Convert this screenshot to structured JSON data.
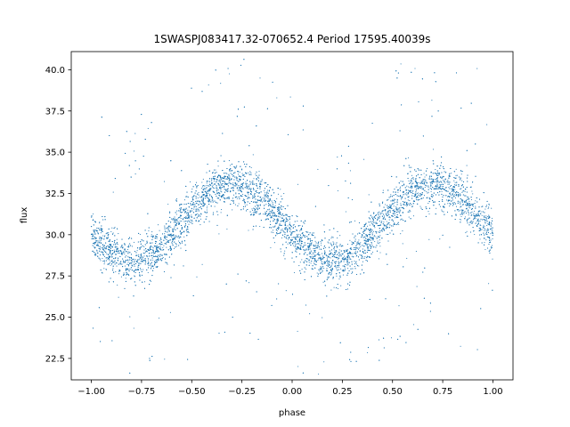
{
  "chart_data": {
    "type": "scatter",
    "title": "1SWASPJ083417.32-070652.4 Period 17595.40039s",
    "xlabel": "phase",
    "ylabel": "flux",
    "xlim": [
      -1.1,
      1.1
    ],
    "ylim": [
      21.2,
      41.1
    ],
    "xticks": [
      -1.0,
      -0.75,
      -0.5,
      -0.25,
      0.0,
      0.25,
      0.5,
      0.75,
      1.0
    ],
    "xtick_labels": [
      "−1.00",
      "−0.75",
      "−0.50",
      "−0.25",
      "0.00",
      "0.25",
      "0.50",
      "0.75",
      "1.00"
    ],
    "yticks": [
      22.5,
      25.0,
      27.5,
      30.0,
      32.5,
      35.0,
      37.5,
      40.0
    ],
    "ytick_labels": [
      "22.5",
      "25.0",
      "27.5",
      "30.0",
      "32.5",
      "35.0",
      "37.5",
      "40.0"
    ],
    "grid": false,
    "marker_color": "#1f77b4",
    "series": [
      {
        "model": "flux ≈ 30.7 − 2.3·sin(2π·(phase + 0.05)), scatter ±1.0",
        "x": [
          -1.0,
          -0.9,
          -0.8,
          -0.75,
          -0.7,
          -0.6,
          -0.5,
          -0.4,
          -0.3,
          -0.25,
          -0.2,
          -0.1,
          0.0,
          0.1,
          0.2,
          0.25,
          0.3,
          0.4,
          0.5,
          0.6,
          0.7,
          0.75,
          0.8,
          0.9,
          1.0
        ],
        "y": [
          30.5,
          29.2,
          28.5,
          28.6,
          29.0,
          30.2,
          31.5,
          32.5,
          33.0,
          32.9,
          32.6,
          31.6,
          30.5,
          29.2,
          28.5,
          28.6,
          29.0,
          30.2,
          31.5,
          32.5,
          33.0,
          32.9,
          32.6,
          31.6,
          30.5
        ]
      }
    ]
  }
}
